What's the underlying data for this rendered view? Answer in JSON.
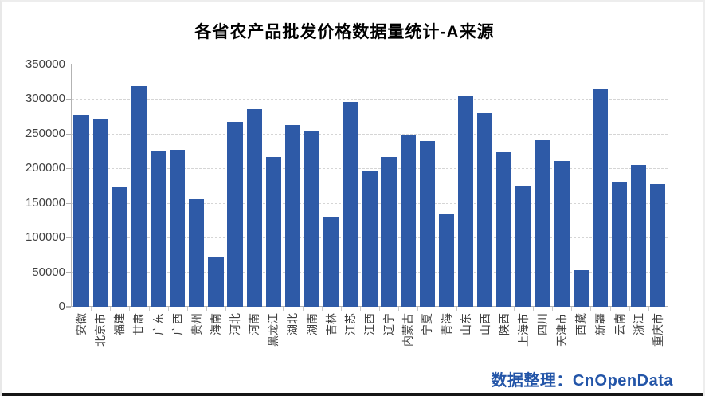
{
  "title": "各省农产品批发价格数据量统计-A来源",
  "watermark": "数据整理：CnOpenData",
  "colors": {
    "bar": "#2e5aa7",
    "watermark": "#2355a8",
    "gridline": "#d5d5d5",
    "axis": "#b3b3b3",
    "tick_label": "#404040",
    "title": "#000000",
    "bottom_border": "#161616"
  },
  "chart_data": {
    "type": "bar",
    "title": "各省农产品批发价格数据量统计-A来源",
    "categories": [
      "安徽",
      "北京市",
      "福建",
      "甘肃",
      "广东",
      "广西",
      "贵州",
      "海南",
      "河北",
      "河南",
      "黑龙江",
      "湖北",
      "湖南",
      "吉林",
      "江苏",
      "江西",
      "辽宁",
      "内蒙古",
      "宁夏",
      "青海",
      "山东",
      "山西",
      "陕西",
      "上海市",
      "四川",
      "天津市",
      "西藏",
      "新疆",
      "云南",
      "浙江",
      "重庆市"
    ],
    "values": [
      278000,
      272000,
      173000,
      319000,
      224000,
      227000,
      156000,
      72000,
      267000,
      285000,
      217000,
      263000,
      253000,
      130000,
      296000,
      196000,
      217000,
      247000,
      240000,
      134000,
      305000,
      280000,
      223000,
      174000,
      241000,
      211000,
      53000,
      314000,
      180000,
      205000,
      177000
    ],
    "xlabel": "",
    "ylabel": "",
    "ylim": [
      0,
      350000
    ],
    "ytick_interval": 50000,
    "yticks": [
      350000,
      300000,
      250000,
      200000,
      150000,
      100000,
      50000,
      0
    ],
    "grid": "horizontal-dashed",
    "legend": "none",
    "x_label_rotation": -90,
    "bar_color": "#2e5aa7"
  }
}
